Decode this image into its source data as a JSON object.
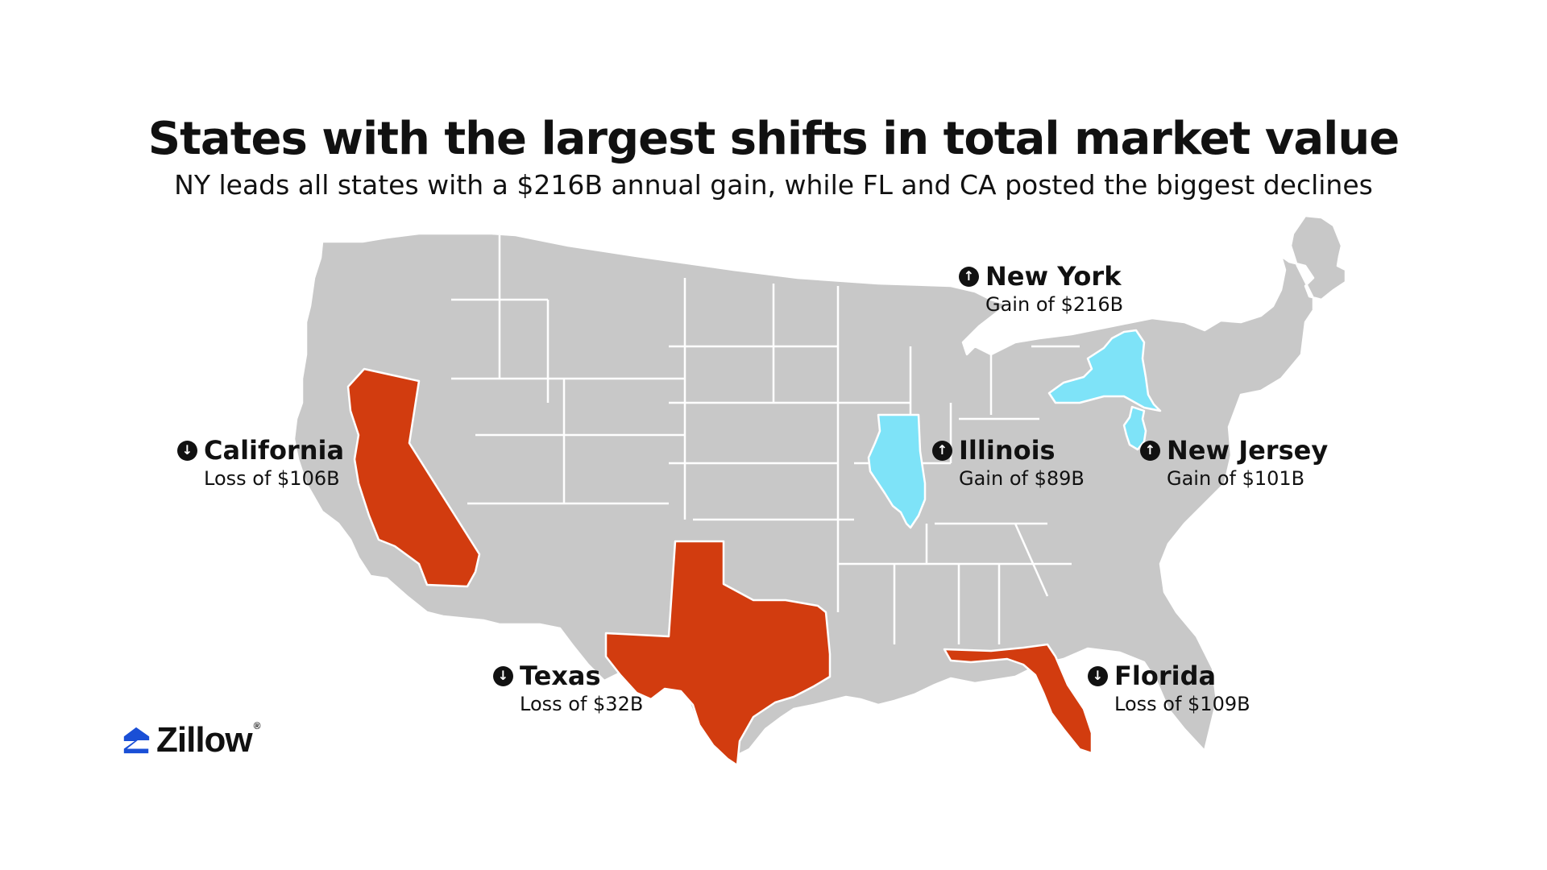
{
  "title": "States with the largest shifts in total market value",
  "subtitle": "NY leads all states with a $216B annual gain, while FL and CA posted the biggest declines",
  "colors": {
    "gain": "#7ee3f8",
    "loss": "#d23c0f",
    "neutral": "#c8c8c8",
    "border": "#ffffff",
    "text": "#111111"
  },
  "states": [
    {
      "id": "new-york",
      "name": "New York",
      "direction": "up",
      "arrow": "↑",
      "value_text": "Gain of $216B",
      "change_billion": 216
    },
    {
      "id": "california",
      "name": "California",
      "direction": "down",
      "arrow": "↓",
      "value_text": "Loss of $106B",
      "change_billion": -106
    },
    {
      "id": "illinois",
      "name": "Illinois",
      "direction": "up",
      "arrow": "↑",
      "value_text": "Gain of $89B",
      "change_billion": 89
    },
    {
      "id": "new-jersey",
      "name": "New Jersey",
      "direction": "up",
      "arrow": "↑",
      "value_text": "Gain of $101B",
      "change_billion": 101
    },
    {
      "id": "texas",
      "name": "Texas",
      "direction": "down",
      "arrow": "↓",
      "value_text": "Loss of $32B",
      "change_billion": -32
    },
    {
      "id": "florida",
      "name": "Florida",
      "direction": "down",
      "arrow": "↓",
      "value_text": "Loss of $109B",
      "change_billion": -109
    }
  ],
  "logo": {
    "text": "Zillow",
    "reg": "®",
    "icon": "zillow-house-icon",
    "color": "#1a4fd6"
  }
}
